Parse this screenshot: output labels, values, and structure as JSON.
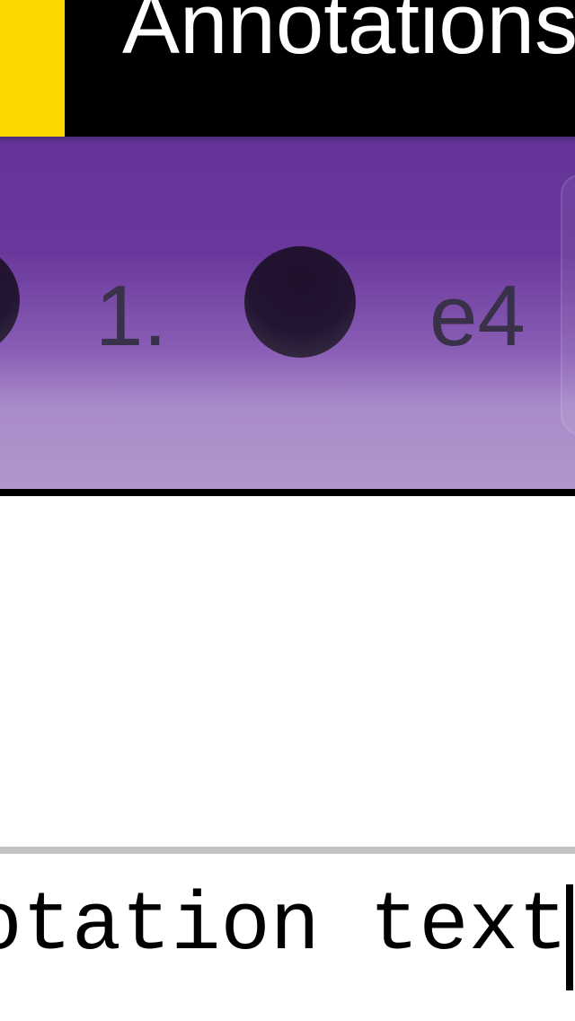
{
  "header": {
    "back_glyph": "‹",
    "title": "Annotations"
  },
  "move_strip": {
    "items": [
      {
        "type": "dot",
        "icon": "move-marker-icon"
      },
      {
        "type": "text",
        "label": "1."
      },
      {
        "type": "dot",
        "icon": "move-marker-icon"
      },
      {
        "type": "text",
        "label": "e4"
      }
    ]
  },
  "annotation": {
    "value": "Annotation text"
  },
  "colors": {
    "back_button": "#FFD700",
    "header_bg": "#000000",
    "strip_purple": "#6a389c",
    "move_text": "#39304a"
  }
}
